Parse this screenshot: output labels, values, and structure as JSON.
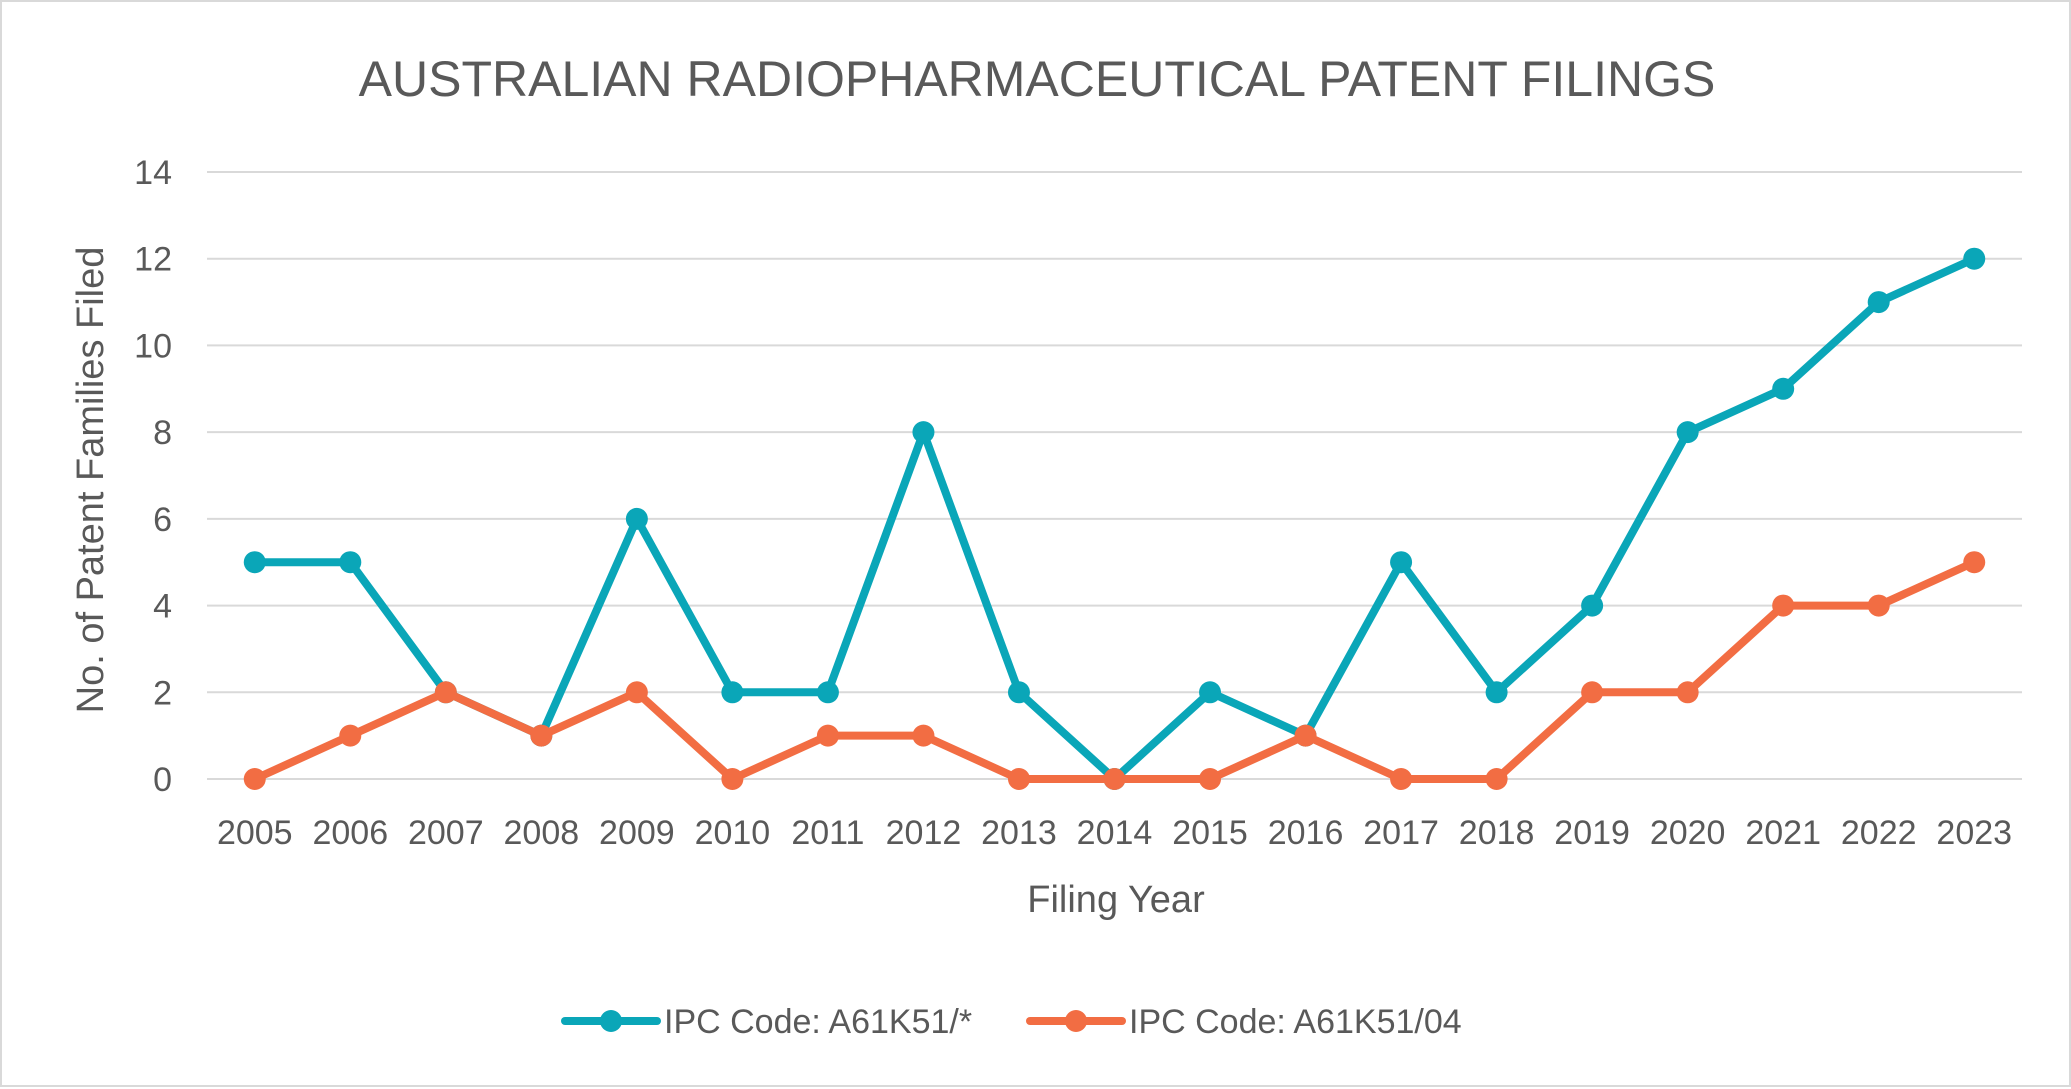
{
  "chart_data": {
    "type": "line",
    "title": "AUSTRALIAN RADIOPHARMACEUTICAL PATENT FILINGS",
    "xlabel": "Filing Year",
    "ylabel": "No. of Patent Families Filed",
    "categories": [
      "2005",
      "2006",
      "2007",
      "2008",
      "2009",
      "2010",
      "2011",
      "2012",
      "2013",
      "2014",
      "2015",
      "2016",
      "2017",
      "2018",
      "2019",
      "2020",
      "2021",
      "2022",
      "2023"
    ],
    "ylim": [
      0,
      14
    ],
    "yticks": [
      "0",
      "2",
      "4",
      "6",
      "8",
      "10",
      "12",
      "14"
    ],
    "grid": true,
    "legend_position": "bottom",
    "series": [
      {
        "name": "IPC Code: A61K51/*",
        "color": "#0aa6b8",
        "values": [
          5,
          5,
          2,
          1,
          6,
          2,
          2,
          8,
          2,
          0,
          2,
          1,
          5,
          2,
          4,
          8,
          9,
          11,
          12
        ]
      },
      {
        "name": "IPC Code: A61K51/04",
        "color": "#f26d43",
        "values": [
          0,
          1,
          2,
          1,
          2,
          0,
          1,
          1,
          0,
          0,
          0,
          1,
          0,
          0,
          2,
          2,
          4,
          4,
          5
        ]
      }
    ]
  }
}
